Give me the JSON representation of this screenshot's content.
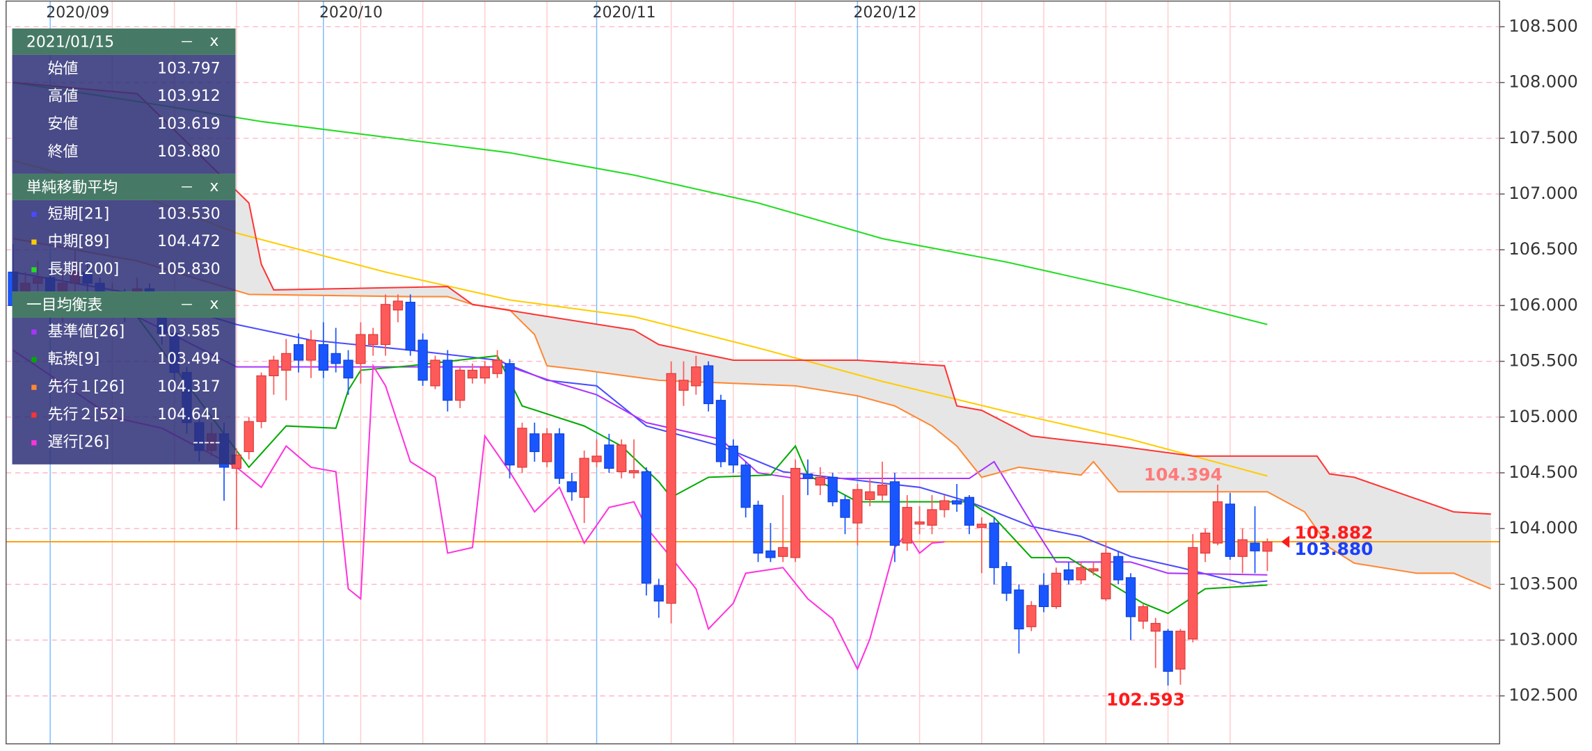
{
  "chart_data": {
    "type": "candlestick",
    "up_color": "#ff5a5a",
    "down_color": "#1a56ff",
    "xlim": [
      -0.55,
      119.7
    ],
    "ylim": [
      102.07,
      108.73
    ],
    "yticks": [
      {
        "value": 108.5,
        "label": "108.500"
      },
      {
        "value": 108,
        "label": "108.000"
      },
      {
        "value": 107.5,
        "label": "107.500"
      },
      {
        "value": 107,
        "label": "107.000"
      },
      {
        "value": 106.5,
        "label": "106.500"
      },
      {
        "value": 106,
        "label": "106.000"
      },
      {
        "value": 105.5,
        "label": "105.500"
      },
      {
        "value": 105,
        "label": "105.000"
      },
      {
        "value": 104.5,
        "label": "104.500"
      },
      {
        "value": 104,
        "label": "104.000"
      },
      {
        "value": 103.5,
        "label": "103.500"
      },
      {
        "value": 103,
        "label": "103.000"
      },
      {
        "value": 102.5,
        "label": "102.500"
      }
    ],
    "xticks": [
      {
        "value": 3,
        "label": "2020/09"
      },
      {
        "value": 25,
        "label": "2020/10"
      },
      {
        "value": 47,
        "label": "2020/11"
      },
      {
        "value": 68,
        "label": "2020/12"
      }
    ],
    "xgrid": [
      8,
      13,
      18,
      23,
      28,
      33,
      38,
      43,
      53,
      58,
      63,
      73,
      78,
      83,
      88,
      93,
      98
    ],
    "grid": true,
    "open": [
      106.3,
      106.0,
      106.2,
      106.25,
      105.9,
      106.2,
      106.3,
      106.2,
      106.05,
      106.1,
      105.95,
      106.15,
      106.05,
      105.75,
      105.4,
      104.95,
      104.7,
      104.85,
      104.54,
      104.69,
      104.96,
      105.37,
      105.42,
      105.65,
      105.51,
      105.65,
      105.57,
      105.51,
      105.48,
      105.65,
      105.65,
      105.96,
      106.03,
      105.69,
      105.28,
      105.51,
      105.15,
      105.35,
      105.35,
      105.39,
      105.48,
      104.55,
      104.85,
      104.6,
      104.85,
      104.42,
      104.28,
      104.6,
      104.75,
      104.51,
      104.5,
      104.51,
      103.49,
      103.33,
      105.24,
      105.28,
      105.46,
      105.15,
      104.74,
      104.57,
      104.21,
      103.8,
      103.75,
      103.74,
      104.49,
      104.39,
      104.46,
      104.26,
      104.05,
      104.26,
      104.3,
      104.42,
      103.87,
      104.04,
      104.03,
      104.17,
      104.25,
      104.28,
      104.01,
      104.05,
      103.66,
      103.45,
      103.12,
      103.49,
      103.3,
      103.63,
      103.54,
      103.62,
      103.37,
      103.75,
      103.56,
      103.17,
      103.08,
      103.08,
      102.74,
      103.01,
      103.78,
      103.87,
      104.22,
      103.75,
      103.87,
      103.797
    ],
    "high": [
      106.55,
      106.3,
      106.4,
      106.35,
      106.3,
      106.5,
      106.4,
      106.25,
      106.2,
      106.15,
      106.25,
      106.2,
      106.1,
      105.8,
      105.45,
      105.05,
      104.95,
      104.95,
      104.72,
      105.0,
      105.4,
      105.55,
      105.7,
      105.75,
      105.78,
      105.85,
      105.8,
      105.6,
      105.85,
      105.8,
      106.1,
      106.1,
      106.1,
      105.75,
      105.55,
      105.6,
      105.45,
      105.48,
      105.5,
      105.6,
      105.52,
      104.95,
      104.95,
      104.9,
      104.9,
      104.5,
      104.7,
      104.8,
      104.85,
      104.8,
      104.8,
      104.55,
      103.55,
      105.5,
      105.5,
      105.55,
      105.5,
      105.2,
      104.8,
      104.6,
      104.25,
      104.05,
      104.3,
      104.62,
      104.62,
      104.55,
      104.5,
      104.3,
      104.4,
      104.45,
      104.6,
      104.5,
      104.3,
      104.2,
      104.3,
      104.3,
      104.4,
      104.3,
      104.1,
      104.1,
      103.7,
      103.5,
      103.35,
      103.6,
      103.65,
      103.7,
      103.7,
      103.7,
      103.88,
      103.8,
      103.6,
      103.32,
      103.2,
      103.1,
      103.1,
      103.95,
      104.0,
      104.394,
      104.32,
      104.0,
      104.2,
      103.912
    ],
    "low": [
      105.95,
      105.9,
      106.05,
      105.8,
      105.85,
      106.1,
      106.1,
      105.95,
      105.9,
      105.85,
      105.9,
      105.95,
      105.65,
      105.3,
      104.85,
      104.6,
      104.65,
      104.25,
      103.99,
      104.62,
      104.9,
      105.2,
      105.15,
      105.4,
      105.35,
      105.35,
      105.4,
      105.2,
      105.3,
      105.55,
      105.55,
      105.85,
      105.55,
      105.28,
      105.25,
      105.05,
      105.08,
      105.3,
      105.3,
      105.35,
      104.45,
      104.5,
      104.6,
      104.55,
      104.4,
      104.25,
      104.05,
      104.55,
      104.5,
      104.45,
      104.45,
      103.4,
      103.2,
      103.15,
      105.1,
      105.2,
      105.05,
      104.55,
      104.5,
      104.1,
      103.7,
      103.7,
      103.7,
      103.7,
      104.3,
      104.3,
      104.2,
      103.95,
      103.85,
      104.2,
      104.25,
      103.7,
      103.8,
      103.95,
      103.95,
      104.1,
      104.15,
      103.95,
      103.6,
      103.5,
      103.35,
      102.88,
      103.08,
      103.25,
      103.28,
      103.5,
      103.5,
      103.58,
      103.35,
      103.5,
      103.0,
      103.1,
      102.75,
      102.593,
      102.6,
      102.98,
      103.7,
      103.85,
      103.72,
      103.6,
      103.6,
      103.619
    ],
    "close": [
      106.0,
      106.2,
      106.25,
      105.9,
      106.2,
      106.3,
      106.2,
      106.05,
      106.1,
      105.95,
      106.15,
      106.05,
      105.75,
      105.4,
      104.95,
      104.7,
      104.85,
      104.55,
      104.66,
      104.96,
      105.37,
      105.51,
      105.57,
      105.51,
      105.69,
      105.42,
      105.48,
      105.35,
      105.74,
      105.74,
      106.01,
      106.04,
      105.6,
      105.33,
      105.51,
      105.15,
      105.42,
      105.42,
      105.45,
      105.51,
      104.57,
      104.9,
      104.69,
      104.85,
      104.45,
      104.33,
      104.63,
      104.65,
      104.54,
      104.75,
      104.52,
      103.51,
      103.35,
      105.39,
      105.33,
      105.45,
      105.12,
      104.6,
      104.57,
      104.19,
      103.78,
      103.74,
      103.83,
      104.54,
      104.45,
      104.46,
      104.24,
      104.1,
      104.35,
      104.33,
      104.39,
      103.85,
      104.19,
      104.06,
      104.17,
      104.25,
      104.22,
      104.03,
      104.04,
      103.65,
      103.42,
      103.1,
      103.31,
      103.3,
      103.6,
      103.54,
      103.65,
      103.64,
      103.78,
      103.54,
      103.21,
      103.3,
      103.15,
      102.72,
      103.08,
      103.83,
      103.96,
      104.24,
      103.75,
      103.9,
      103.8,
      103.88
    ],
    "series": [
      {
        "color": "#4a4aff",
        "x": [
          0,
          10,
          18,
          24,
          32,
          39,
          43,
          47,
          51,
          57,
          62,
          69,
          73,
          77,
          82,
          86,
          90,
          94,
          99,
          101
        ],
        "values": [
          106.3,
          106.1,
          105.83,
          105.69,
          105.6,
          105.51,
          105.33,
          105.28,
          104.92,
          104.74,
          104.51,
          104.42,
          104.37,
          104.24,
          104.02,
          103.93,
          103.75,
          103.65,
          103.51,
          103.53
        ]
      },
      {
        "color": "#ffcc00",
        "x": [
          0,
          10,
          18,
          30,
          40,
          50,
          60,
          70,
          80,
          90,
          101
        ],
        "values": [
          107.3,
          107.0,
          106.65,
          106.3,
          106.05,
          105.9,
          105.62,
          105.32,
          105.05,
          104.8,
          104.472
        ]
      },
      {
        "color": "#22dd22",
        "x": [
          0,
          10,
          20,
          30,
          40,
          50,
          60,
          70,
          80,
          90,
          101
        ],
        "values": [
          108.0,
          107.83,
          107.65,
          107.51,
          107.37,
          107.17,
          106.92,
          106.6,
          106.39,
          106.14,
          105.83
        ]
      },
      {
        "color": "#aa33ff",
        "x": [
          0,
          10,
          18,
          30,
          40,
          44,
          47,
          51,
          57,
          60,
          63,
          77,
          79,
          82,
          84,
          90,
          93,
          101
        ],
        "values": [
          106.1,
          105.9,
          105.45,
          105.45,
          105.45,
          105.3,
          105.2,
          104.95,
          104.8,
          104.5,
          104.45,
          104.45,
          104.6,
          104.05,
          103.7,
          103.7,
          103.6,
          103.585
        ]
      },
      {
        "color": "#00aa00",
        "x": [
          0,
          10,
          19,
          22,
          26,
          27,
          28,
          32,
          39,
          41,
          46,
          49,
          52,
          53,
          56,
          61,
          63,
          64,
          68,
          77,
          79,
          82,
          85,
          87,
          91,
          93,
          96,
          101
        ],
        "values": [
          106.1,
          105.9,
          104.55,
          104.92,
          104.9,
          105.24,
          105.42,
          105.46,
          105.55,
          105.1,
          104.92,
          104.74,
          104.42,
          104.28,
          104.46,
          104.48,
          104.74,
          104.48,
          104.24,
          104.24,
          104.1,
          103.74,
          103.74,
          103.6,
          103.33,
          103.24,
          103.46,
          103.494
        ]
      },
      {
        "color": "#ff8833",
        "x": [
          0,
          10,
          19,
          32,
          35,
          37,
          40,
          42,
          43,
          46,
          52,
          63,
          68,
          71,
          74,
          76,
          78,
          81,
          86,
          87,
          89,
          101,
          104,
          106,
          108,
          113,
          116,
          119
        ],
        "values": [
          106.6,
          106.4,
          106.1,
          106.08,
          106.08,
          106.01,
          105.96,
          105.74,
          105.46,
          105.42,
          105.33,
          105.28,
          105.19,
          105.1,
          104.92,
          104.74,
          104.46,
          104.55,
          104.48,
          104.6,
          104.33,
          104.33,
          104.15,
          103.83,
          103.69,
          103.6,
          103.6,
          103.46
        ]
      },
      {
        "color": "#ff3333",
        "x": [
          0,
          10,
          19,
          20,
          21,
          35,
          37,
          42,
          50,
          52,
          58,
          68,
          75,
          76,
          78,
          82,
          89,
          95,
          105,
          106,
          108,
          116,
          119
        ],
        "values": [
          108.0,
          107.9,
          106.92,
          106.37,
          106.14,
          106.17,
          106.01,
          105.92,
          105.78,
          105.65,
          105.51,
          105.51,
          105.46,
          105.1,
          105.06,
          104.83,
          104.74,
          104.65,
          104.65,
          104.49,
          104.46,
          104.15,
          104.13
        ]
      },
      {
        "color": "#ff33dd",
        "x": [
          0,
          8,
          12,
          18,
          20,
          22,
          24,
          26,
          27,
          28,
          29,
          30,
          32,
          34,
          35,
          37,
          38,
          40,
          42,
          44,
          46,
          48,
          50,
          51,
          53,
          55,
          56,
          58,
          59,
          62,
          64,
          66,
          68,
          69,
          71,
          72,
          73,
          74,
          75
        ],
        "values": [
          105.6,
          105.0,
          104.9,
          104.55,
          104.37,
          104.74,
          104.55,
          104.51,
          103.46,
          103.37,
          105.46,
          105.28,
          104.6,
          104.46,
          103.78,
          103.83,
          104.83,
          104.51,
          104.15,
          104.37,
          103.87,
          104.19,
          104.24,
          104.01,
          103.74,
          103.46,
          103.1,
          103.33,
          103.6,
          103.65,
          103.37,
          103.19,
          102.74,
          103.01,
          103.83,
          103.96,
          103.78,
          103.87,
          103.88
        ]
      }
    ],
    "cloud_color": "#e6e6e6",
    "annotations": [
      {
        "label": "104.394",
        "value": 104.394,
        "at": 97,
        "color": "#ff7a7a"
      },
      {
        "label": "102.593",
        "value": 102.593,
        "at": 93,
        "color": "#ff1a1a"
      }
    ],
    "price_line": {
      "value": 103.882,
      "label": "103.882",
      "color": "#ff1a1a",
      "line_color": "#ff9900"
    },
    "bid_line": {
      "value": 103.88,
      "label": "103.880",
      "color": "#1a40ff"
    }
  },
  "panel": {
    "date": "2021/01/15",
    "buttons": [
      "－",
      "x"
    ],
    "ohlc": [
      {
        "label": "始値",
        "value": "103.797"
      },
      {
        "label": "高値",
        "value": "103.912"
      },
      {
        "label": "安値",
        "value": "103.619"
      },
      {
        "label": "終値",
        "value": "103.880"
      }
    ],
    "sections": [
      {
        "title": "単純移動平均",
        "buttons": [
          "－",
          "x"
        ],
        "items": [
          {
            "label": "短期[21]",
            "value": "103.530",
            "color": "#4a4aff"
          },
          {
            "label": "中期[89]",
            "value": "104.472",
            "color": "#ffcc00"
          },
          {
            "label": "長期[200]",
            "value": "105.830",
            "color": "#22dd22"
          }
        ]
      },
      {
        "title": "一目均衡表",
        "buttons": [
          "－",
          "x"
        ],
        "items": [
          {
            "label": "基準値[26]",
            "value": "103.585",
            "color": "#aa33ff"
          },
          {
            "label": "転換[9]",
            "value": "103.494",
            "color": "#00aa00"
          },
          {
            "label": "先行１[26]",
            "value": "104.317",
            "color": "#ff8833"
          },
          {
            "label": "先行２[52]",
            "value": "104.641",
            "color": "#ff3333"
          },
          {
            "label": "遅行[26]",
            "value": "-----",
            "color": "#ff33dd"
          }
        ]
      }
    ]
  }
}
